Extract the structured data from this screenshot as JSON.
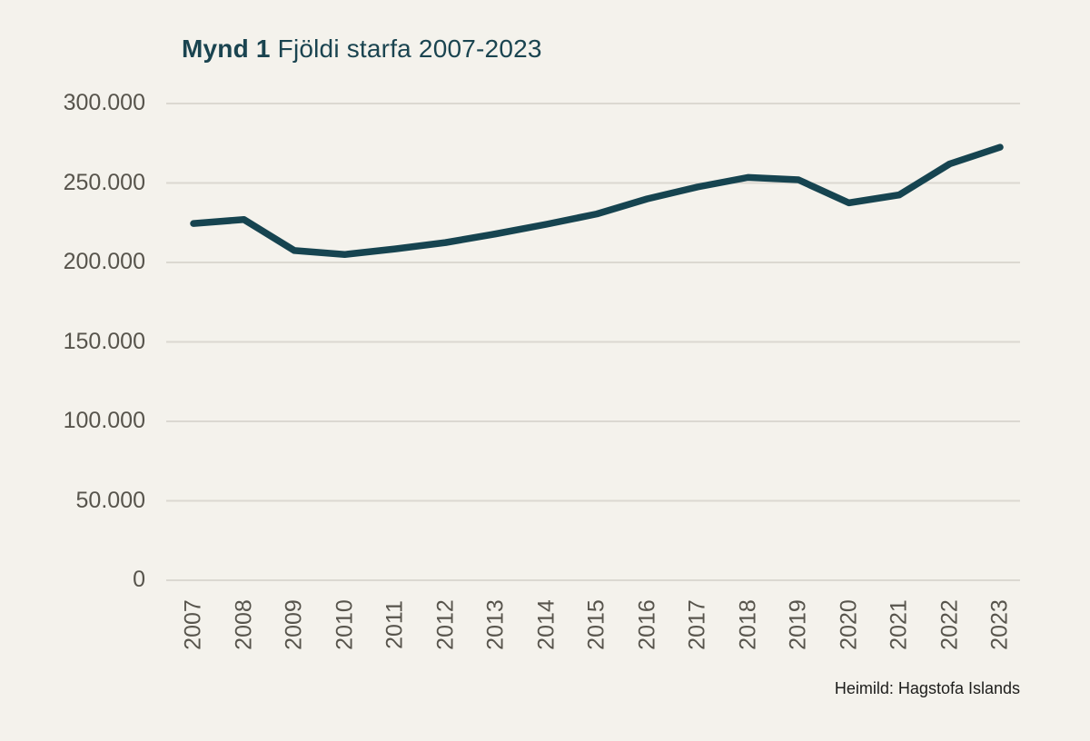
{
  "chart_data": {
    "type": "line",
    "title": "Mynd 1 Fjöldi starfa 2007-2023",
    "title_bold": "Mynd 1",
    "title_rest": "Fjöldi starfa 2007-2023",
    "categories": [
      "2007",
      "2008",
      "2009",
      "2010",
      "2011",
      "2012",
      "2013",
      "2014",
      "2015",
      "2016",
      "2017",
      "2018",
      "2019",
      "2020",
      "2021",
      "2022",
      "2023"
    ],
    "values": [
      224500,
      227000,
      207500,
      205000,
      208500,
      212500,
      218000,
      224000,
      230500,
      240000,
      247500,
      253500,
      252000,
      237500,
      242500,
      262000,
      272500
    ],
    "ylim": [
      0,
      300000
    ],
    "ytick_values": [
      0,
      50000,
      100000,
      150000,
      200000,
      250000,
      300000
    ],
    "ytick_labels": [
      "0",
      "50.000",
      "100.000",
      "150.000",
      "200.000",
      "250.000",
      "300.000"
    ],
    "xlabel": "",
    "ylabel": "",
    "grid": "horizontal",
    "legend": "none",
    "source": "Heimild: Hagstofa Islands"
  },
  "colors": {
    "background": "#f4f2ec",
    "line": "#164450",
    "title_text": "#1a4450",
    "tick_text": "#57544c",
    "grid": "#dbd8d1",
    "source_text": "#1d1d1b"
  }
}
